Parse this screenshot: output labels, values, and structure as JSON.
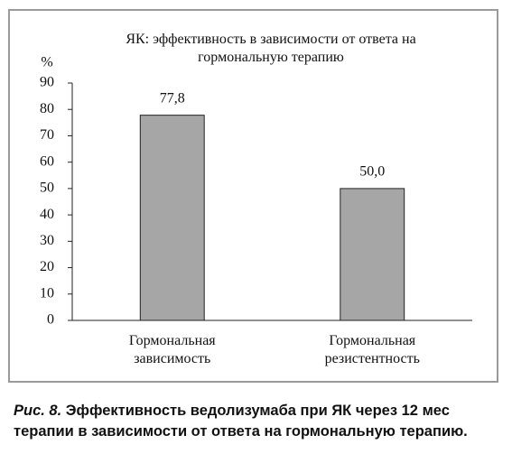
{
  "chart_data": {
    "type": "bar",
    "title": "ЯК: эффективность в зависимости от ответа на гормональную терапию",
    "y_label": "%",
    "categories": [
      "Гормональная зависимость",
      "Гормональная резистентность"
    ],
    "values": [
      77.8,
      50.0
    ],
    "value_labels": [
      "77,8",
      "50,0"
    ],
    "color": "#a6a6a6",
    "ylim": [
      0,
      90
    ],
    "yticks": [
      0,
      10,
      20,
      30,
      40,
      50,
      60,
      70,
      80,
      90
    ]
  },
  "caption": {
    "label": "Рис. 8.",
    "text": "Эффективность ведолизумаба при ЯК через 12 мес терапии в зависимости от ответа на гормональную терапию."
  }
}
